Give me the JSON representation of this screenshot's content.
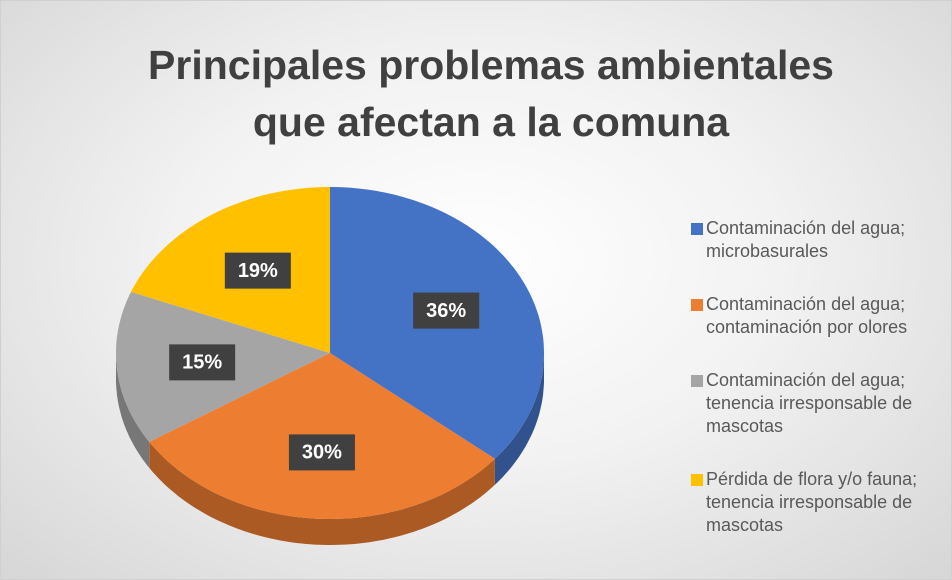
{
  "chart_data": {
    "type": "pie",
    "title": "Principales problemas ambientales que afectan a la comuna",
    "categories": [
      "Contaminación del agua; microbasurales",
      "Contaminación del agua; contaminación por olores",
      "Contaminación del agua; tenencia irresponsable de mascotas",
      "Pérdida de flora y/o fauna; tenencia irresponsable de mascotas"
    ],
    "values": [
      36,
      30,
      15,
      19
    ],
    "value_labels": [
      "36%",
      "30%",
      "15%",
      "19%"
    ],
    "colors": [
      "#4472c4",
      "#ed7d31",
      "#a5a5a5",
      "#ffc000"
    ],
    "legend": "right"
  }
}
